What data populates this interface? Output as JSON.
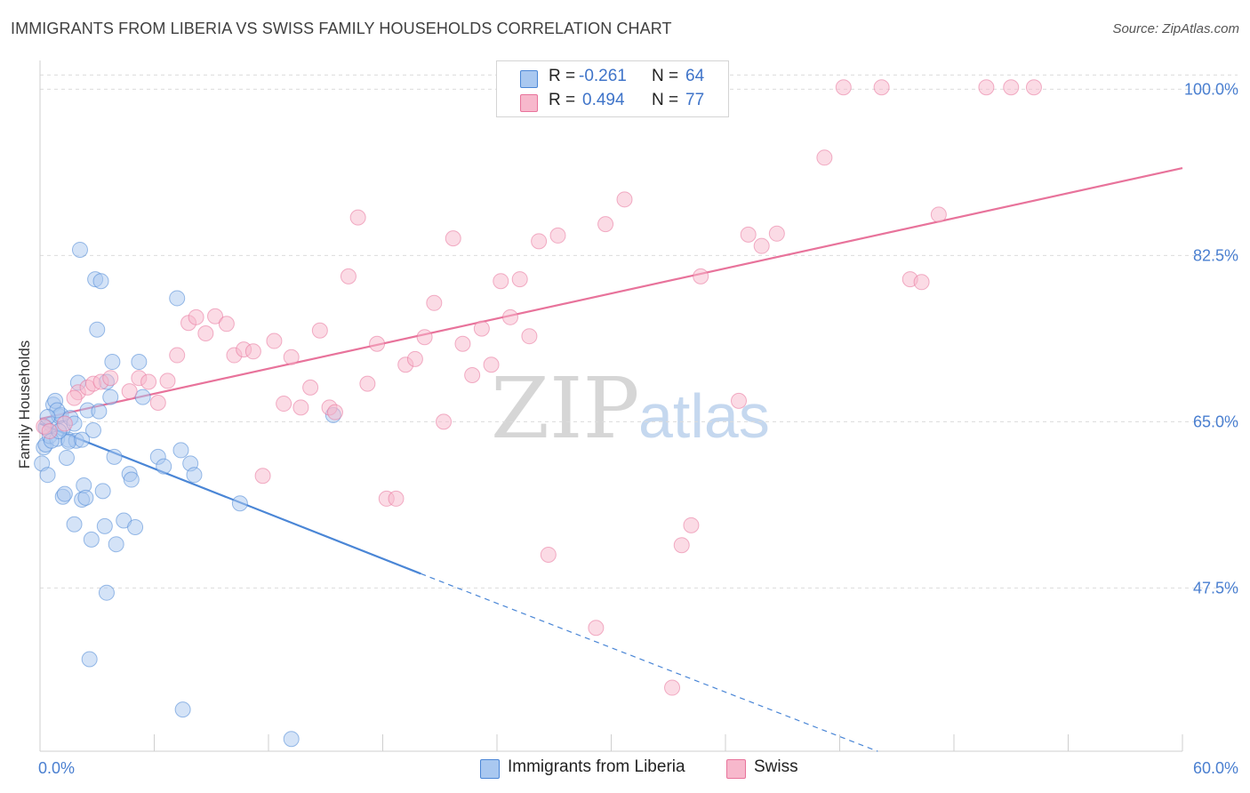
{
  "title": "IMMIGRANTS FROM LIBERIA VS SWISS FAMILY HOUSEHOLDS CORRELATION CHART",
  "source": "Source: ZipAtlas.com",
  "watermark": {
    "zip": "ZIP",
    "atlas": "atlas"
  },
  "legend_stats": {
    "rows": [
      {
        "r_label": "R = ",
        "r_value": "-0.261",
        "n_label": "N = ",
        "n_value": "64",
        "color": "#a9c8f0"
      },
      {
        "r_label": "R = ",
        "r_value": "0.494",
        "n_label": "N = ",
        "n_value": "77",
        "color": "#f7b8cc"
      }
    ]
  },
  "bottom_legend": {
    "items": [
      {
        "label": "Immigrants from Liberia",
        "color": "#a9c8f0"
      },
      {
        "label": "Swiss",
        "color": "#f7b8cc"
      }
    ]
  },
  "chart_data": {
    "type": "scatter",
    "title": "IMMIGRANTS FROM LIBERIA VS SWISS FAMILY HOUSEHOLDS CORRELATION CHART",
    "xlabel": "",
    "ylabel": "Family Households",
    "xlim": [
      0,
      60
    ],
    "ylim": [
      30.5,
      102
    ],
    "x_tick_labels": [
      "0.0%",
      "60.0%"
    ],
    "y_ticks": [
      100.0,
      82.5,
      65.0,
      47.5
    ],
    "y_tick_labels": [
      "100.0%",
      "82.5%",
      "65.0%",
      "47.5%"
    ],
    "grid": true,
    "legend_position": "top-center",
    "series": [
      {
        "name": "Immigrants from Liberia",
        "color": "#4a86d6",
        "fill": "#a9c8f0",
        "points": [
          [
            0.1,
            60.6
          ],
          [
            0.2,
            62.3
          ],
          [
            0.3,
            62.6
          ],
          [
            0.4,
            59.4
          ],
          [
            0.5,
            63.5
          ],
          [
            0.6,
            64.7
          ],
          [
            0.7,
            66.8
          ],
          [
            0.8,
            67.2
          ],
          [
            0.9,
            63.2
          ],
          [
            1.0,
            65.6
          ],
          [
            1.1,
            65.7
          ],
          [
            1.2,
            64.3
          ],
          [
            1.2,
            57.1
          ],
          [
            1.3,
            57.4
          ],
          [
            1.4,
            61.2
          ],
          [
            1.5,
            63.1
          ],
          [
            1.6,
            65.4
          ],
          [
            1.8,
            54.2
          ],
          [
            1.9,
            63.0
          ],
          [
            2.0,
            69.1
          ],
          [
            2.1,
            83.1
          ],
          [
            2.2,
            56.8
          ],
          [
            2.3,
            58.3
          ],
          [
            2.4,
            57.0
          ],
          [
            2.5,
            66.2
          ],
          [
            2.6,
            40.0
          ],
          [
            2.7,
            52.6
          ],
          [
            2.8,
            64.1
          ],
          [
            2.9,
            80.0
          ],
          [
            3.0,
            74.7
          ],
          [
            3.1,
            66.1
          ],
          [
            3.2,
            79.8
          ],
          [
            3.3,
            57.7
          ],
          [
            3.4,
            54.0
          ],
          [
            3.5,
            69.2
          ],
          [
            3.5,
            47.0
          ],
          [
            3.7,
            67.6
          ],
          [
            3.8,
            71.3
          ],
          [
            3.9,
            61.3
          ],
          [
            4.0,
            52.1
          ],
          [
            4.4,
            54.6
          ],
          [
            4.7,
            59.5
          ],
          [
            4.8,
            58.9
          ],
          [
            5.0,
            53.9
          ],
          [
            5.2,
            71.3
          ],
          [
            5.4,
            67.6
          ],
          [
            6.2,
            61.3
          ],
          [
            6.5,
            60.3
          ],
          [
            7.2,
            78.0
          ],
          [
            7.4,
            62.0
          ],
          [
            7.5,
            34.7
          ],
          [
            7.9,
            60.6
          ],
          [
            8.1,
            59.4
          ],
          [
            10.5,
            56.4
          ],
          [
            13.2,
            31.6
          ],
          [
            15.4,
            65.7
          ],
          [
            0.3,
            64.4
          ],
          [
            0.9,
            66.2
          ],
          [
            1.5,
            62.9
          ],
          [
            2.2,
            63.1
          ],
          [
            0.6,
            63.0
          ],
          [
            1.0,
            64.0
          ],
          [
            1.8,
            64.8
          ],
          [
            0.4,
            65.5
          ]
        ],
        "trend": {
          "x_start": 0.0,
          "y_start": 64.8,
          "x_solid_end": 20.0,
          "y_solid_end": 49.0,
          "x_dash_end": 44.0,
          "y_dash_end": 30.3
        }
      },
      {
        "name": "Swiss",
        "color": "#e8739b",
        "fill": "#f7b8cc",
        "points": [
          [
            0.2,
            64.5
          ],
          [
            0.5,
            64.0
          ],
          [
            1.3,
            64.8
          ],
          [
            2.0,
            68.1
          ],
          [
            2.5,
            68.6
          ],
          [
            2.8,
            69.0
          ],
          [
            3.2,
            69.2
          ],
          [
            3.7,
            69.6
          ],
          [
            4.7,
            68.2
          ],
          [
            5.2,
            69.6
          ],
          [
            5.7,
            69.2
          ],
          [
            6.2,
            67.0
          ],
          [
            6.7,
            69.3
          ],
          [
            7.2,
            72.0
          ],
          [
            7.8,
            75.4
          ],
          [
            8.2,
            76.0
          ],
          [
            8.7,
            74.3
          ],
          [
            9.2,
            76.1
          ],
          [
            9.8,
            75.3
          ],
          [
            10.2,
            72.0
          ],
          [
            10.7,
            72.6
          ],
          [
            11.2,
            72.4
          ],
          [
            11.7,
            59.3
          ],
          [
            12.3,
            73.5
          ],
          [
            12.8,
            66.9
          ],
          [
            13.2,
            71.8
          ],
          [
            13.7,
            66.5
          ],
          [
            14.2,
            68.6
          ],
          [
            14.7,
            74.6
          ],
          [
            15.2,
            66.5
          ],
          [
            15.5,
            66.0
          ],
          [
            16.2,
            80.3
          ],
          [
            16.7,
            86.5
          ],
          [
            17.2,
            69.0
          ],
          [
            17.7,
            73.2
          ],
          [
            18.2,
            56.9
          ],
          [
            18.7,
            56.9
          ],
          [
            19.2,
            71.0
          ],
          [
            19.7,
            71.6
          ],
          [
            20.2,
            73.9
          ],
          [
            20.7,
            77.5
          ],
          [
            21.2,
            65.0
          ],
          [
            21.7,
            84.3
          ],
          [
            22.2,
            73.2
          ],
          [
            22.7,
            69.9
          ],
          [
            23.2,
            74.8
          ],
          [
            23.7,
            71.0
          ],
          [
            24.2,
            79.8
          ],
          [
            24.7,
            76.0
          ],
          [
            25.2,
            80.0
          ],
          [
            25.7,
            74.0
          ],
          [
            26.2,
            84.0
          ],
          [
            26.7,
            51.0
          ],
          [
            27.2,
            84.6
          ],
          [
            29.2,
            43.3
          ],
          [
            29.7,
            85.8
          ],
          [
            30.7,
            88.4
          ],
          [
            32.2,
            100.2
          ],
          [
            33.2,
            37.0
          ],
          [
            33.7,
            52.0
          ],
          [
            34.2,
            54.1
          ],
          [
            34.7,
            80.3
          ],
          [
            35.7,
            100.3
          ],
          [
            36.7,
            67.2
          ],
          [
            37.2,
            84.7
          ],
          [
            37.9,
            83.5
          ],
          [
            38.7,
            84.8
          ],
          [
            41.2,
            92.8
          ],
          [
            42.2,
            100.2
          ],
          [
            44.2,
            100.2
          ],
          [
            45.7,
            80.0
          ],
          [
            46.3,
            79.7
          ],
          [
            47.2,
            86.8
          ],
          [
            49.7,
            100.2
          ],
          [
            51.0,
            100.2
          ],
          [
            52.2,
            100.2
          ],
          [
            1.8,
            67.5
          ]
        ],
        "trend": {
          "x_start": 0.0,
          "y_start": 65.3,
          "x_end": 60.0,
          "y_end": 91.7
        }
      }
    ]
  }
}
